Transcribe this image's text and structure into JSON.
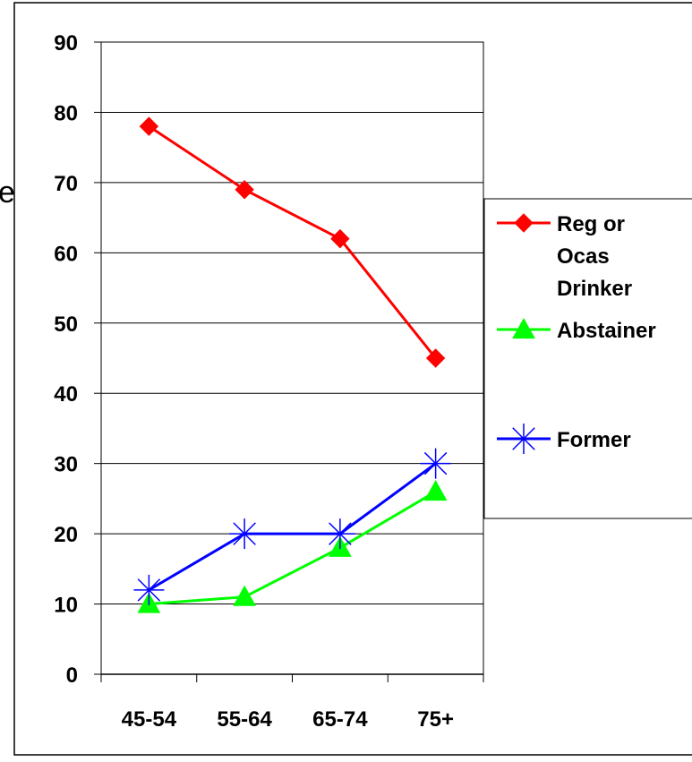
{
  "chart_data": {
    "type": "line",
    "categories": [
      "45-54",
      "55-64",
      "65-74",
      "75+"
    ],
    "ylim": [
      0,
      90
    ],
    "yticks": [
      0,
      10,
      20,
      30,
      40,
      50,
      60,
      70,
      80,
      90
    ],
    "grid": true,
    "legend_position": "right",
    "series": [
      {
        "name": "Reg or Ocas Drinker",
        "name_lines": [
          "Reg or",
          "Ocas",
          "Drinker"
        ],
        "values": [
          78,
          69,
          62,
          45
        ],
        "color": "#ff0000",
        "marker": "diamond"
      },
      {
        "name": "Abstainer",
        "name_lines": [
          "Abstainer"
        ],
        "values": [
          10,
          11,
          18,
          26
        ],
        "color": "#00ff00",
        "marker": "triangle"
      },
      {
        "name": "Former",
        "name_lines": [
          "Former"
        ],
        "values": [
          12,
          20,
          20,
          30
        ],
        "color": "#0000ff",
        "marker": "asterisk"
      }
    ],
    "partial_axis_label_glyph": "e"
  }
}
